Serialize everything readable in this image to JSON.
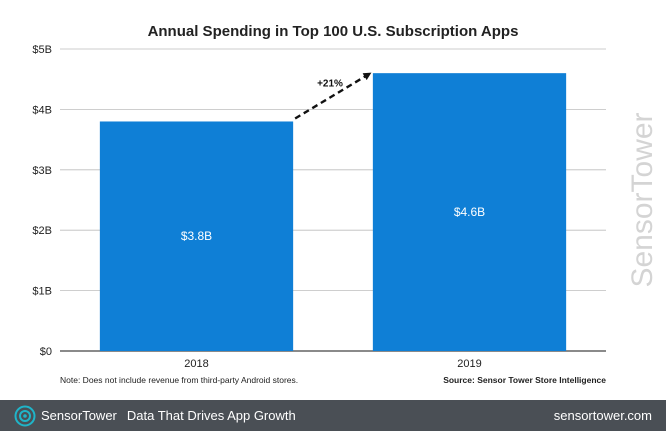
{
  "chart_data": {
    "type": "bar",
    "title": "Annual Spending in Top 100 U.S. Subscription Apps",
    "categories": [
      "2018",
      "2019"
    ],
    "values": [
      3.8,
      4.6
    ],
    "value_labels": [
      "$3.8B",
      "$4.6B"
    ],
    "y_ticks": [
      0,
      1,
      2,
      3,
      4,
      5
    ],
    "y_tick_labels": [
      "$0",
      "$1B",
      "$2B",
      "$3B",
      "$4B",
      "$5B"
    ],
    "ylim": [
      0,
      5
    ],
    "xlabel": "",
    "ylabel": "",
    "grid": true,
    "bar_color": "#0f7fd6",
    "annotation": {
      "label": "+21%",
      "from_category": "2018",
      "to_category": "2019"
    },
    "note": "Note: Does not include revenue from third-party Android stores.",
    "source": "Source: Sensor Tower Store Intelligence"
  },
  "watermark": "SensorTower",
  "footer": {
    "brand_part1": "Sensor",
    "brand_part2": "Tower",
    "tagline": "Data That Drives App Growth",
    "url": "sensortower.com",
    "brand_color": "#1fb5c9"
  }
}
